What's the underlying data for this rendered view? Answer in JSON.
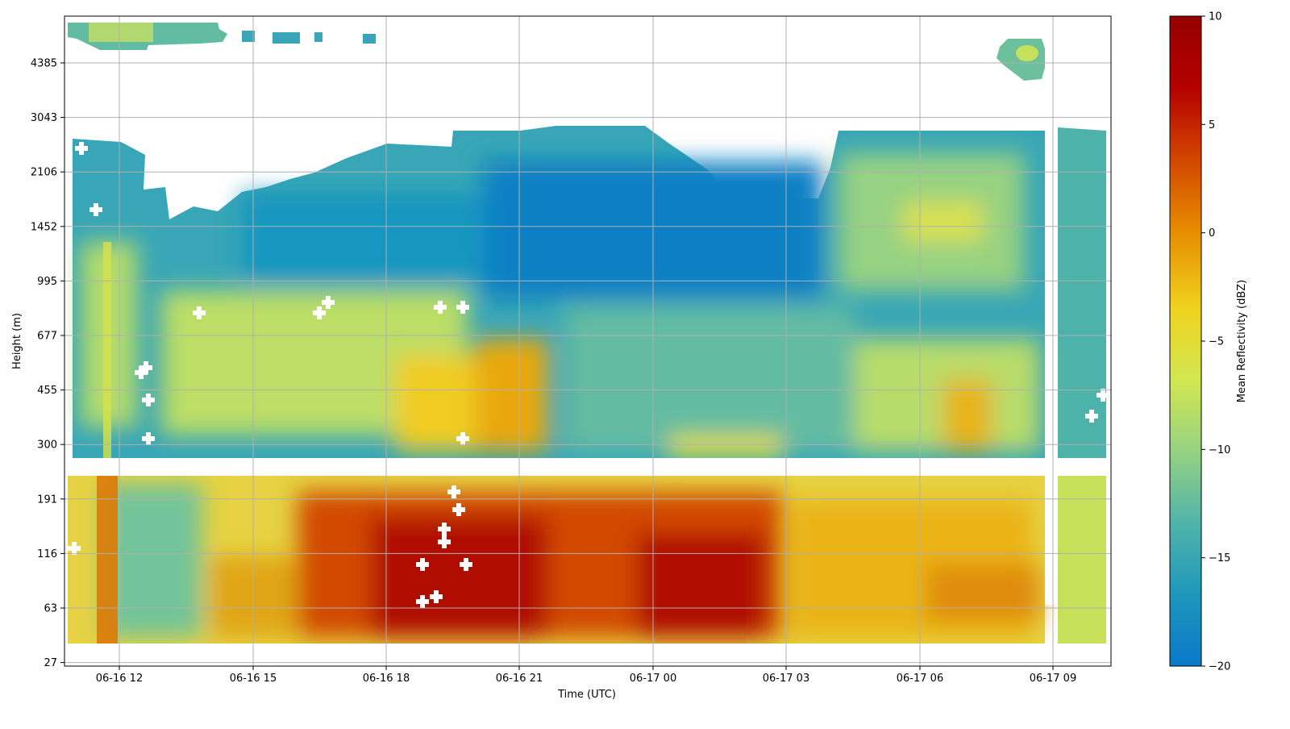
{
  "chart_data": {
    "type": "heatmap",
    "title": "",
    "xlabel": "Time (UTC)",
    "ylabel": "Height (m)",
    "x_ticks": [
      "06-16 12",
      "06-16 15",
      "06-16 18",
      "06-16 21",
      "06-17 00",
      "06-17 03",
      "06-17 06",
      "06-17 09"
    ],
    "y_ticks": [
      "27",
      "63",
      "116",
      "191",
      "300",
      "455",
      "677",
      "995",
      "1452",
      "2106",
      "3043",
      "4385"
    ],
    "colorbar": {
      "label": "Mean Reflectivity (dBZ)",
      "range": [
        -20,
        10
      ],
      "ticks": [
        "10",
        "5",
        "0",
        "−5",
        "−10",
        "−15",
        "−20"
      ],
      "tick_values": [
        10,
        5,
        0,
        -5,
        -10,
        -15,
        -20
      ],
      "colormap": [
        "#0a78c8",
        "#1e96bc",
        "#50b4aa",
        "#96d282",
        "#d2e650",
        "#f0d21e",
        "#e68c00",
        "#d24600",
        "#b40000",
        "#960000"
      ]
    },
    "grid": true,
    "time_range": [
      "06-16 10:50",
      "06-17 10:30"
    ],
    "regions": [
      {
        "zone": "lowest layer (27-280 m), 06-16 18 to 06-17 03",
        "value_dbz": 7
      },
      {
        "zone": "lowest layer (27-280 m), 06-16 11 to 06-16 14",
        "value_dbz": -10
      },
      {
        "zone": "lowest layer (27-280 m), 06-17 04 to 06-17 09",
        "value_dbz": -2
      },
      {
        "zone": "300-700 m, 06-16 18 to 06-16 22",
        "value_dbz": -3
      },
      {
        "zone": "300-1000 m, 06-17 00 to 06-17 04",
        "value_dbz": -12
      },
      {
        "zone": "1000-2800 m, 06-16 15 to 06-17 03",
        "value_dbz": -18
      },
      {
        "zone": "1000-2800 m, 06-17 04 to 06-17 09",
        "value_dbz": -11
      },
      {
        "zone": "above 4385 m, 06-16 11 to 06-16 13",
        "value_dbz": -13
      }
    ]
  }
}
